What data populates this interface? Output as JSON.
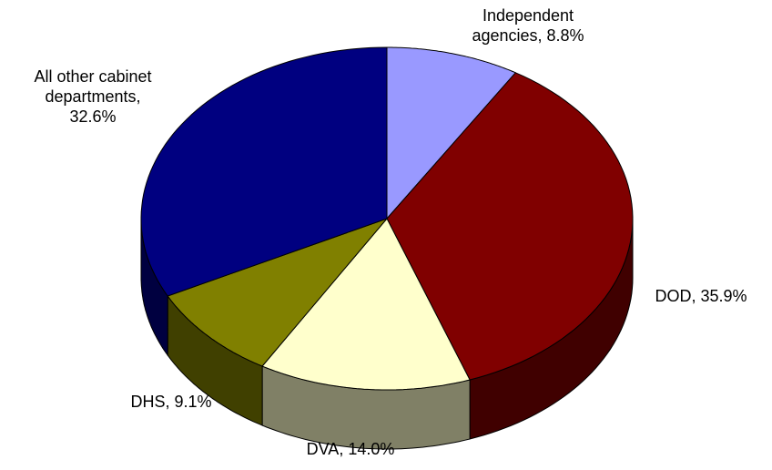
{
  "chart_data": {
    "type": "pie3d",
    "values": [
      8.8,
      35.9,
      14.0,
      9.1,
      32.6
    ],
    "value_labels": [
      "Independent\nagencies, 8.8%",
      "DOD, 35.9%",
      "DVA, 14.0%",
      "DHS, 9.1%",
      "All other cabinet\ndepartments,\n32.6%"
    ],
    "colors": [
      "#9999ff",
      "#800000",
      "#ffffcc",
      "#808000",
      "#000080"
    ]
  }
}
